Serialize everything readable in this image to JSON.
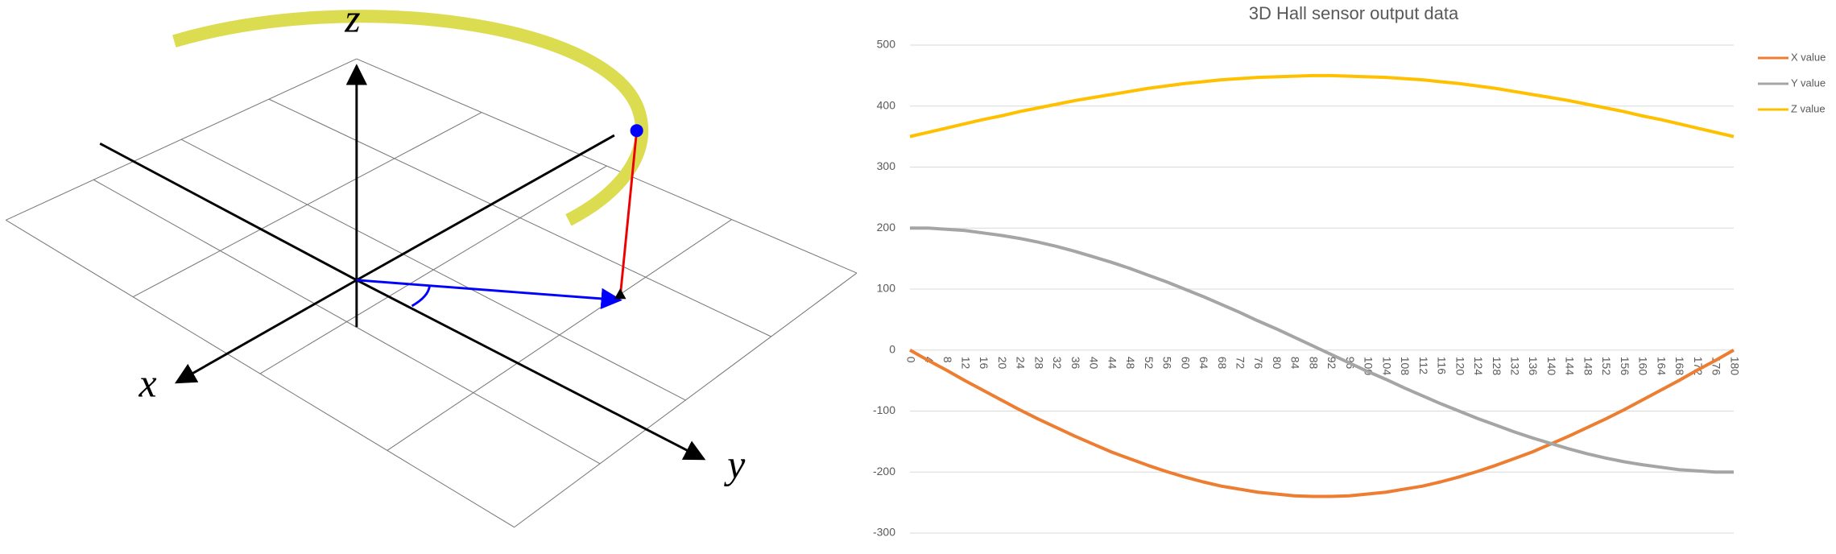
{
  "diagram": {
    "axis_labels": [
      "x",
      "y",
      "z"
    ]
  },
  "chart_data": {
    "type": "line",
    "title": "3D Hall sensor output data",
    "categories": [
      "0",
      "4",
      "8",
      "12",
      "16",
      "20",
      "24",
      "28",
      "32",
      "36",
      "40",
      "44",
      "48",
      "52",
      "56",
      "60",
      "64",
      "68",
      "72",
      "76",
      "80",
      "84",
      "88",
      "92",
      "96",
      "100",
      "104",
      "108",
      "112",
      "116",
      "120",
      "124",
      "128",
      "132",
      "136",
      "140",
      "144",
      "148",
      "152",
      "156",
      "160",
      "164",
      "168",
      "172",
      "176",
      "180"
    ],
    "series": [
      {
        "name": "X value",
        "color": "#ed7d31",
        "values": [
          0,
          -17,
          -33,
          -50,
          -66,
          -82,
          -98,
          -113,
          -127,
          -141,
          -154,
          -167,
          -178,
          -189,
          -199,
          -208,
          -216,
          -223,
          -228,
          -233,
          -236,
          -239,
          -240,
          -240,
          -239,
          -236,
          -233,
          -228,
          -223,
          -216,
          -208,
          -199,
          -189,
          -178,
          -167,
          -154,
          -141,
          -127,
          -113,
          -98,
          -82,
          -66,
          -50,
          -33,
          -17,
          0
        ]
      },
      {
        "name": "Y value",
        "color": "#a5a5a5",
        "values": [
          200,
          200,
          198,
          196,
          192,
          188,
          183,
          177,
          170,
          162,
          153,
          144,
          134,
          123,
          112,
          100,
          88,
          75,
          62,
          48,
          35,
          21,
          7,
          -7,
          -21,
          -35,
          -48,
          -62,
          -75,
          -88,
          -100,
          -112,
          -123,
          -134,
          -144,
          -153,
          -162,
          -170,
          -177,
          -183,
          -188,
          -192,
          -196,
          -198,
          -200,
          -200
        ]
      },
      {
        "name": "Z value",
        "color": "#ffc000",
        "values": [
          350,
          357,
          364,
          371,
          378,
          384,
          391,
          397,
          403,
          409,
          414,
          419,
          424,
          429,
          433,
          437,
          440,
          443,
          445,
          447,
          448,
          449,
          450,
          450,
          449,
          448,
          447,
          445,
          443,
          440,
          437,
          433,
          429,
          424,
          419,
          414,
          409,
          403,
          397,
          391,
          384,
          378,
          371,
          364,
          357,
          350
        ]
      }
    ],
    "ylim": [
      -300,
      500
    ],
    "yticks": [
      -300,
      -200,
      -100,
      0,
      100,
      200,
      300,
      400,
      500
    ],
    "grid": true,
    "legend": "right"
  }
}
